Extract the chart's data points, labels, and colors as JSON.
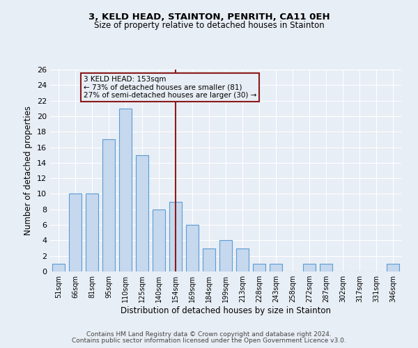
{
  "title": "3, KELD HEAD, STAINTON, PENRITH, CA11 0EH",
  "subtitle": "Size of property relative to detached houses in Stainton",
  "xlabel": "Distribution of detached houses by size in Stainton",
  "ylabel": "Number of detached properties",
  "categories": [
    "51sqm",
    "66sqm",
    "81sqm",
    "95sqm",
    "110sqm",
    "125sqm",
    "140sqm",
    "154sqm",
    "169sqm",
    "184sqm",
    "199sqm",
    "213sqm",
    "228sqm",
    "243sqm",
    "258sqm",
    "272sqm",
    "287sqm",
    "302sqm",
    "317sqm",
    "331sqm",
    "346sqm"
  ],
  "values": [
    1,
    10,
    10,
    17,
    21,
    15,
    8,
    9,
    6,
    3,
    4,
    3,
    1,
    1,
    0,
    1,
    1,
    0,
    0,
    0,
    1
  ],
  "bar_color": "#c5d8ed",
  "bar_edge_color": "#5b9bd5",
  "vline_index": 7,
  "vline_color": "#8b1a1a",
  "annotation_title": "3 KELD HEAD: 153sqm",
  "annotation_line1": "← 73% of detached houses are smaller (81)",
  "annotation_line2": "27% of semi-detached houses are larger (30) →",
  "annotation_box_color": "#8b1a1a",
  "ylim": [
    0,
    26
  ],
  "yticks": [
    0,
    2,
    4,
    6,
    8,
    10,
    12,
    14,
    16,
    18,
    20,
    22,
    24,
    26
  ],
  "background_color": "#e8eef5",
  "footer1": "Contains HM Land Registry data © Crown copyright and database right 2024.",
  "footer2": "Contains public sector information licensed under the Open Government Licence v3.0.",
  "bar_width": 0.75,
  "grid_color": "#ffffff"
}
